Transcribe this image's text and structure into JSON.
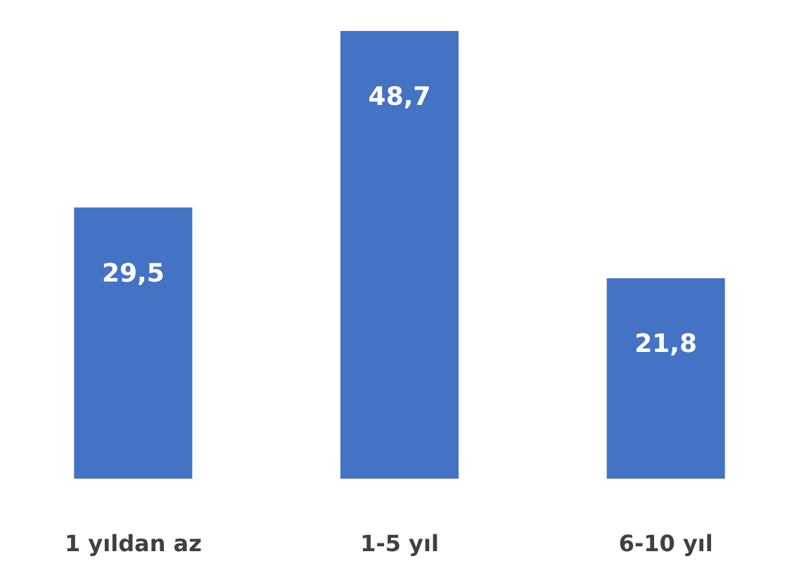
{
  "chart_data": {
    "type": "bar",
    "categories": [
      "1 yıldan az",
      "1-5 yıl",
      "6-10 yıl"
    ],
    "values": [
      29.5,
      48.7,
      21.8
    ],
    "color": "#4472c4",
    "value_labels": [
      "29,5",
      "48,7",
      "21,8"
    ]
  }
}
